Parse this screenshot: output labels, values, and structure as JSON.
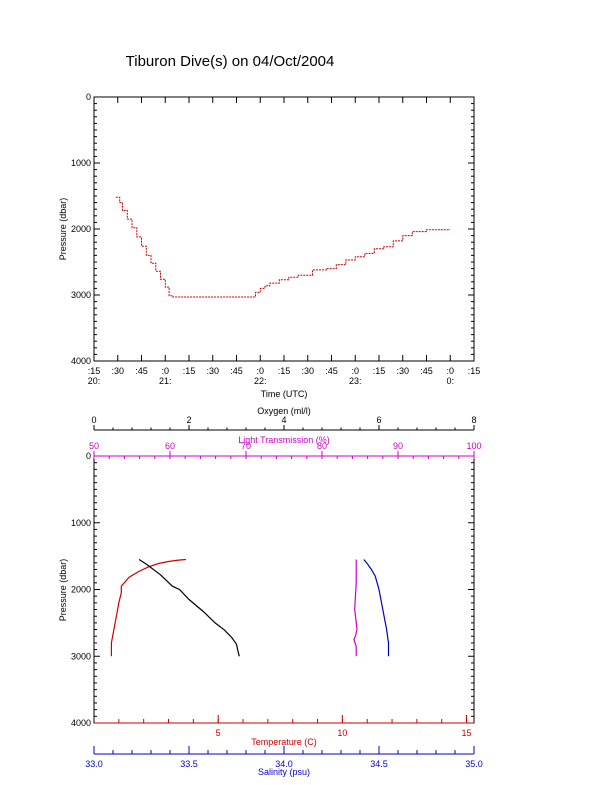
{
  "title": "Tiburon Dive(s) on 04/Oct/2004",
  "colors": {
    "axis": "#000000",
    "temperature": "#cc0000",
    "salinity": "#0000cc",
    "light_transmission": "#cc00cc",
    "oxygen": "#000000",
    "depth_trace": "#cc0000"
  },
  "chart_data": [
    {
      "type": "line",
      "name": "pressure-vs-time",
      "xlabel": "Time (UTC)",
      "ylabel": "Pressure (dbar)",
      "ylim": [
        4000,
        0
      ],
      "yticks": [
        0,
        1000,
        2000,
        3000,
        4000
      ],
      "xticks": [
        {
          "minute": ":15",
          "hour": "20:"
        },
        {
          "minute": ":30",
          "hour": ""
        },
        {
          "minute": ":45",
          "hour": ""
        },
        {
          "minute": ":0",
          "hour": "21:"
        },
        {
          "minute": ":15",
          "hour": ""
        },
        {
          "minute": ":30",
          "hour": ""
        },
        {
          "minute": ":45",
          "hour": ""
        },
        {
          "minute": ":0",
          "hour": "22:"
        },
        {
          "minute": ":15",
          "hour": ""
        },
        {
          "minute": ":30",
          "hour": ""
        },
        {
          "minute": ":45",
          "hour": ""
        },
        {
          "minute": ":0",
          "hour": "23:"
        },
        {
          "minute": ":15",
          "hour": ""
        },
        {
          "minute": ":30",
          "hour": ""
        },
        {
          "minute": ":45",
          "hour": ""
        },
        {
          "minute": ":0",
          "hour": "0:"
        },
        {
          "minute": ":15",
          "hour": ""
        }
      ],
      "x_units": "hours since 20:00 UTC",
      "xlim": [
        0.25,
        4.25
      ],
      "x": [
        0.48,
        0.52,
        0.55,
        0.6,
        0.65,
        0.7,
        0.75,
        0.8,
        0.85,
        0.9,
        0.95,
        1.0,
        1.04,
        1.08,
        1.5,
        1.9,
        1.95,
        2.0,
        2.05,
        2.1,
        2.2,
        2.3,
        2.4,
        2.55,
        2.7,
        2.8,
        2.9,
        3.0,
        3.1,
        3.2,
        3.3,
        3.4,
        3.5,
        3.6,
        3.75,
        4.0
      ],
      "y": [
        1520,
        1600,
        1720,
        1850,
        1980,
        2120,
        2260,
        2400,
        2520,
        2640,
        2760,
        2880,
        3010,
        3030,
        3030,
        3030,
        2960,
        2900,
        2860,
        2820,
        2770,
        2730,
        2700,
        2620,
        2600,
        2540,
        2470,
        2420,
        2370,
        2300,
        2270,
        2180,
        2100,
        2040,
        2010,
        2010
      ]
    },
    {
      "type": "line",
      "name": "profiles",
      "ylabel": "Pressure (dbar)",
      "ylim": [
        4000,
        0
      ],
      "yticks": [
        0,
        1000,
        2000,
        3000,
        4000
      ],
      "axes": {
        "oxygen": {
          "label": "Oxygen (ml/l)",
          "lim": [
            0,
            8
          ],
          "ticks": [
            0,
            2,
            4,
            6,
            8
          ]
        },
        "light_transmission": {
          "label": "Light Transmission (%)",
          "lim": [
            50,
            100
          ],
          "ticks": [
            50,
            60,
            70,
            80,
            90,
            100
          ]
        },
        "temperature": {
          "label": "Temperature (C)",
          "lim": [
            0,
            15.3
          ],
          "ticks": [
            5,
            10,
            15
          ]
        },
        "salinity": {
          "label": "Salinity (psu)",
          "lim": [
            33.0,
            35.0
          ],
          "ticks": [
            "33.0",
            "33.5",
            "34.0",
            "34.5",
            "35.0"
          ],
          "tick_values": [
            33.0,
            33.5,
            34.0,
            34.5,
            35.0
          ]
        }
      },
      "series": [
        {
          "name": "Temperature (C)",
          "axis": "temperature",
          "x": [
            0.7,
            0.7,
            0.8,
            0.9,
            1.0,
            1.1,
            1.1,
            1.4,
            1.8,
            2.2,
            2.6,
            3.0,
            3.4,
            3.7
          ],
          "y": [
            3000,
            2800,
            2600,
            2400,
            2200,
            2050,
            1950,
            1820,
            1730,
            1660,
            1610,
            1580,
            1560,
            1550
          ]
        },
        {
          "name": "Oxygen (ml/l)",
          "axis": "oxygen",
          "x": [
            0.95,
            1.1,
            1.4,
            1.65,
            1.8,
            2.0,
            2.3,
            2.55,
            2.75,
            2.9,
            3.0,
            3.03,
            3.06
          ],
          "y": [
            1550,
            1620,
            1780,
            1950,
            2000,
            2150,
            2330,
            2500,
            2610,
            2720,
            2820,
            2920,
            3000
          ]
        },
        {
          "name": "Salinity (psu)",
          "axis": "salinity",
          "x": [
            34.42,
            34.44,
            34.46,
            34.48,
            34.49,
            34.5,
            34.51,
            34.52,
            34.53,
            34.54,
            34.55,
            34.55
          ],
          "y": [
            1550,
            1620,
            1700,
            1800,
            1900,
            2000,
            2150,
            2300,
            2450,
            2600,
            2800,
            3000
          ]
        },
        {
          "name": "Light Transmission (%)",
          "axis": "light_transmission",
          "x": [
            84.5,
            84.5,
            84.3,
            84.6,
            84.4,
            84.2,
            84.5,
            84.5
          ],
          "y": [
            1550,
            1900,
            2300,
            2600,
            2700,
            2750,
            2850,
            3000
          ]
        }
      ]
    }
  ]
}
